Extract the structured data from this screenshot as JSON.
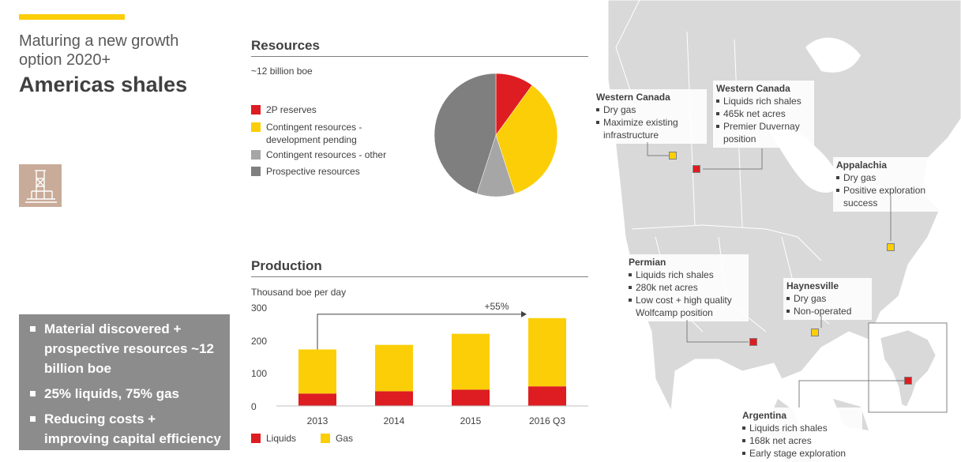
{
  "header": {
    "subtitle": "Maturing a new growth option 2020+",
    "title": "Americas shales"
  },
  "icon": {
    "name": "drilling-rig-icon"
  },
  "key_points": [
    "Material discovered + prospective resources ~12 billion boe",
    "25% liquids, 75% gas",
    "Reducing costs + improving capital efficiency"
  ],
  "resources": {
    "title": "Resources",
    "units": "~12 billion boe",
    "legend": [
      {
        "label": "2P reserves",
        "color": "#dd1d21"
      },
      {
        "label": "Contingent resources - development pending",
        "color": "#fbce07"
      },
      {
        "label": "Contingent resources - other",
        "color": "#a6a6a6"
      },
      {
        "label": "Prospective resources",
        "color": "#7f7f7f"
      }
    ]
  },
  "production": {
    "title": "Production",
    "units": "Thousand boe per day",
    "annotation": "+55%",
    "yticks": [
      "300",
      "200",
      "100",
      "0"
    ],
    "legend": [
      {
        "label": "Liquids",
        "color": "#dd1d21"
      },
      {
        "label": "Gas",
        "color": "#fbce07"
      }
    ]
  },
  "chart_data": [
    {
      "type": "pie",
      "title": "Resources",
      "subtitle": "~12 billion boe",
      "labels": [
        "2P reserves",
        "Contingent resources - development pending",
        "Contingent resources - other",
        "Prospective resources"
      ],
      "values": [
        10,
        35,
        10,
        45
      ],
      "colors": [
        "#dd1d21",
        "#fbce07",
        "#a6a6a6",
        "#7f7f7f"
      ]
    },
    {
      "type": "bar",
      "stacked": true,
      "title": "Production",
      "ylabel": "Thousand boe per day",
      "categories": [
        "2013",
        "2014",
        "2015",
        "2016 Q3"
      ],
      "series": [
        {
          "name": "Liquids",
          "values": [
            38,
            45,
            50,
            60
          ],
          "color": "#dd1d21"
        },
        {
          "name": "Gas",
          "values": [
            135,
            142,
            171,
            209
          ],
          "color": "#fbce07"
        }
      ],
      "ylim": [
        0,
        300
      ],
      "annotation": "+55%"
    }
  ],
  "map": {
    "callouts": [
      {
        "title": "Western Canada",
        "items": [
          "Dry gas",
          "Maximize existing infrastructure"
        ]
      },
      {
        "title": "Western Canada",
        "items": [
          "Liquids rich shales",
          "465k net acres",
          "Premier Duvernay position"
        ]
      },
      {
        "title": "Appalachia",
        "items": [
          "Dry gas",
          "Positive exploration success"
        ]
      },
      {
        "title": "Permian",
        "items": [
          "Liquids rich shales",
          "280k net acres",
          "Low cost + high quality Wolfcamp position"
        ]
      },
      {
        "title": "Haynesville",
        "items": [
          "Dry gas",
          "Non-operated"
        ]
      },
      {
        "title": "Argentina",
        "items": [
          "Liquids rich shales",
          "168k net acres",
          "Early stage exploration"
        ]
      }
    ],
    "marker_colors": {
      "liquids": "#dd1d21",
      "gas": "#fbce07"
    }
  }
}
